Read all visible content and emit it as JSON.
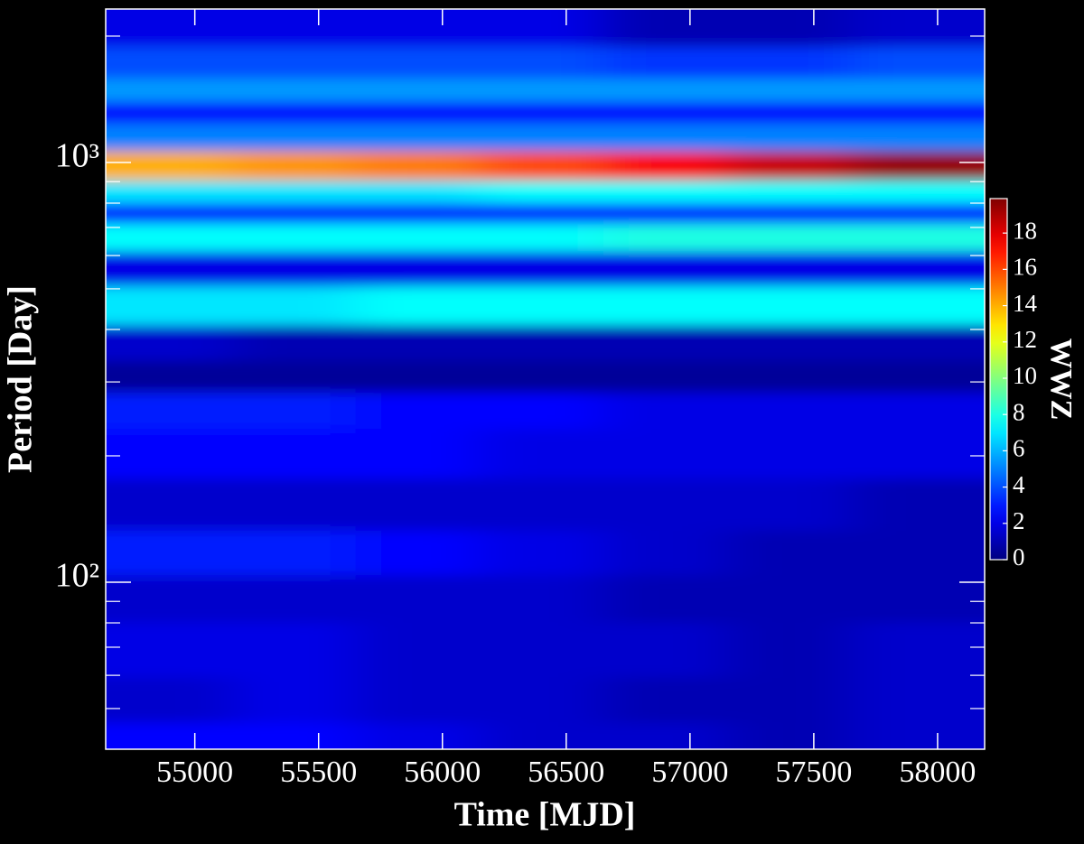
{
  "chart_data": {
    "type": "heatmap",
    "xlabel": "Time [MJD]",
    "ylabel": "Period [Day]",
    "colorbar_label": "WWZ",
    "colormap": "jet",
    "ylog": true,
    "xlim": [
      54640,
      58190
    ],
    "xticks": [
      55000,
      55500,
      56000,
      56500,
      57000,
      57500,
      58000
    ],
    "ylim": [
      40,
      2320
    ],
    "yticks": [
      {
        "value": 100,
        "label": "10²"
      },
      {
        "value": 1000,
        "label": "10³"
      }
    ],
    "yminor_ticks": [
      50,
      60,
      70,
      80,
      90,
      200,
      300,
      400,
      500,
      600,
      700,
      800,
      900,
      2000
    ],
    "clim": [
      0,
      19.9
    ],
    "cticks": [
      0,
      2,
      4,
      6,
      8,
      10,
      12,
      14,
      16,
      18
    ],
    "x": [
      54900,
      55400,
      55900,
      56400,
      56900,
      57400,
      57900
    ],
    "y": [
      2103,
      1683,
      1486,
      1313,
      1160,
      975,
      841,
      762,
      667,
      566,
      453,
      371,
      305,
      262,
      205,
      152,
      116,
      93,
      69,
      51,
      42
    ],
    "z": [
      [
        2,
        2,
        2,
        2,
        1,
        1,
        1.5
      ],
      [
        4,
        4,
        4,
        4,
        3.5,
        3.5,
        4
      ],
      [
        5.5,
        5.5,
        5.5,
        5.5,
        5.5,
        5.5,
        5.5
      ],
      [
        2.5,
        2.5,
        2.5,
        2.5,
        2.5,
        2.5,
        2.5
      ],
      [
        5,
        5,
        5,
        5,
        5,
        5,
        5
      ],
      [
        14,
        14.5,
        15,
        16,
        17.5,
        18.5,
        19.5
      ],
      [
        7,
        7,
        7,
        7.5,
        7.5,
        7.5,
        7.5
      ],
      [
        3,
        3,
        3,
        3,
        3,
        3,
        3
      ],
      [
        7.5,
        7.5,
        7.5,
        7.5,
        8,
        8,
        8
      ],
      [
        2,
        2,
        2,
        2,
        2,
        2,
        2
      ],
      [
        7,
        7,
        7.5,
        7.5,
        7.5,
        7.5,
        7.5
      ],
      [
        1.5,
        1,
        1,
        1,
        1,
        1,
        1
      ],
      [
        0.5,
        0.5,
        0.5,
        0.5,
        0.5,
        0.5,
        0.5
      ],
      [
        3,
        3,
        2.5,
        2.5,
        2,
        2,
        2
      ],
      [
        2.5,
        2.5,
        2.5,
        2,
        2,
        2,
        2
      ],
      [
        1.5,
        1.5,
        1.5,
        1.5,
        1.5,
        1.5,
        1
      ],
      [
        3,
        3,
        2.5,
        2,
        1.5,
        1,
        1
      ],
      [
        1.5,
        1.5,
        1.5,
        1.5,
        1,
        1,
        1
      ],
      [
        2,
        2,
        1.5,
        1.5,
        1.5,
        1,
        1.5
      ],
      [
        1.5,
        2,
        1.5,
        1.5,
        1,
        1,
        1.5
      ],
      [
        2.5,
        2.5,
        2,
        1.5,
        1.5,
        1,
        1.5
      ]
    ]
  }
}
